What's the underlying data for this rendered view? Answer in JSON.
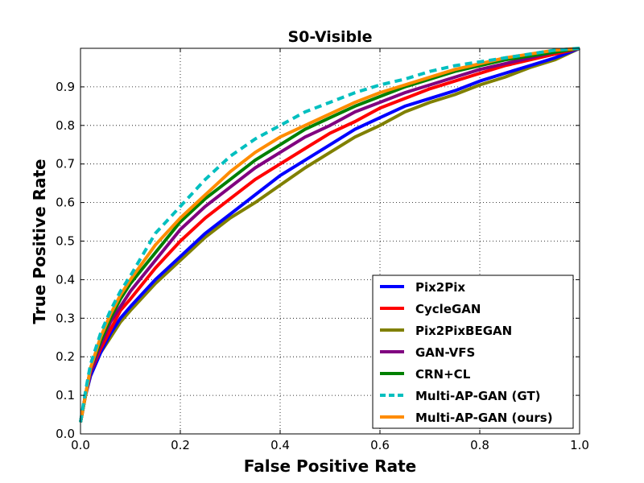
{
  "chart_data": {
    "type": "line",
    "title": "S0-Visible",
    "xlabel": "False Positive Rate",
    "ylabel": "True Positive Rate",
    "xlim": [
      0.0,
      1.0
    ],
    "ylim": [
      0.0,
      1.0
    ],
    "grid": true,
    "legend_position": "lower-right",
    "x_ticks": [
      "0.0",
      "0.2",
      "0.4",
      "0.6",
      "0.8",
      "1.0"
    ],
    "y_ticks": [
      "0.0",
      "0.1",
      "0.2",
      "0.3",
      "0.4",
      "0.5",
      "0.6",
      "0.7",
      "0.8",
      "0.9"
    ],
    "series": [
      {
        "name": "Pix2Pix",
        "color": "#0000ff",
        "style": "solid",
        "points": [
          [
            0,
            0.03
          ],
          [
            0.01,
            0.1
          ],
          [
            0.02,
            0.15
          ],
          [
            0.04,
            0.21
          ],
          [
            0.06,
            0.26
          ],
          [
            0.08,
            0.3
          ],
          [
            0.1,
            0.33
          ],
          [
            0.15,
            0.4
          ],
          [
            0.2,
            0.46
          ],
          [
            0.25,
            0.52
          ],
          [
            0.3,
            0.57
          ],
          [
            0.35,
            0.62
          ],
          [
            0.4,
            0.67
          ],
          [
            0.45,
            0.71
          ],
          [
            0.5,
            0.75
          ],
          [
            0.55,
            0.79
          ],
          [
            0.6,
            0.82
          ],
          [
            0.65,
            0.85
          ],
          [
            0.7,
            0.87
          ],
          [
            0.75,
            0.89
          ],
          [
            0.8,
            0.915
          ],
          [
            0.85,
            0.935
          ],
          [
            0.9,
            0.955
          ],
          [
            0.95,
            0.975
          ],
          [
            1.0,
            1.0
          ]
        ]
      },
      {
        "name": "CycleGAN",
        "color": "#ff0000",
        "style": "solid",
        "points": [
          [
            0,
            0.03
          ],
          [
            0.01,
            0.1
          ],
          [
            0.02,
            0.16
          ],
          [
            0.04,
            0.22
          ],
          [
            0.06,
            0.27
          ],
          [
            0.08,
            0.32
          ],
          [
            0.1,
            0.35
          ],
          [
            0.15,
            0.43
          ],
          [
            0.2,
            0.5
          ],
          [
            0.25,
            0.56
          ],
          [
            0.3,
            0.61
          ],
          [
            0.35,
            0.66
          ],
          [
            0.4,
            0.7
          ],
          [
            0.45,
            0.74
          ],
          [
            0.5,
            0.78
          ],
          [
            0.55,
            0.81
          ],
          [
            0.6,
            0.845
          ],
          [
            0.65,
            0.87
          ],
          [
            0.7,
            0.895
          ],
          [
            0.75,
            0.915
          ],
          [
            0.8,
            0.935
          ],
          [
            0.85,
            0.955
          ],
          [
            0.9,
            0.97
          ],
          [
            0.95,
            0.985
          ],
          [
            1.0,
            1.0
          ]
        ]
      },
      {
        "name": "Pix2PixBEGAN",
        "color": "#808000",
        "style": "solid",
        "points": [
          [
            0,
            0.03
          ],
          [
            0.01,
            0.1
          ],
          [
            0.02,
            0.15
          ],
          [
            0.04,
            0.21
          ],
          [
            0.06,
            0.25
          ],
          [
            0.08,
            0.29
          ],
          [
            0.1,
            0.32
          ],
          [
            0.15,
            0.39
          ],
          [
            0.2,
            0.45
          ],
          [
            0.25,
            0.51
          ],
          [
            0.3,
            0.56
          ],
          [
            0.35,
            0.6
          ],
          [
            0.4,
            0.645
          ],
          [
            0.45,
            0.69
          ],
          [
            0.5,
            0.73
          ],
          [
            0.55,
            0.77
          ],
          [
            0.6,
            0.8
          ],
          [
            0.65,
            0.835
          ],
          [
            0.7,
            0.86
          ],
          [
            0.75,
            0.88
          ],
          [
            0.8,
            0.905
          ],
          [
            0.85,
            0.925
          ],
          [
            0.9,
            0.95
          ],
          [
            0.95,
            0.97
          ],
          [
            1.0,
            1.0
          ]
        ]
      },
      {
        "name": "GAN-VFS",
        "color": "#800080",
        "style": "solid",
        "points": [
          [
            0,
            0.03
          ],
          [
            0.01,
            0.1
          ],
          [
            0.02,
            0.16
          ],
          [
            0.04,
            0.23
          ],
          [
            0.06,
            0.29
          ],
          [
            0.08,
            0.33
          ],
          [
            0.1,
            0.37
          ],
          [
            0.15,
            0.45
          ],
          [
            0.2,
            0.53
          ],
          [
            0.25,
            0.59
          ],
          [
            0.3,
            0.64
          ],
          [
            0.35,
            0.69
          ],
          [
            0.4,
            0.73
          ],
          [
            0.45,
            0.77
          ],
          [
            0.5,
            0.8
          ],
          [
            0.55,
            0.835
          ],
          [
            0.6,
            0.86
          ],
          [
            0.65,
            0.885
          ],
          [
            0.7,
            0.905
          ],
          [
            0.75,
            0.925
          ],
          [
            0.8,
            0.945
          ],
          [
            0.85,
            0.96
          ],
          [
            0.9,
            0.975
          ],
          [
            0.95,
            0.99
          ],
          [
            1.0,
            1.0
          ]
        ]
      },
      {
        "name": "CRN+CL",
        "color": "#008000",
        "style": "solid",
        "points": [
          [
            0,
            0.03
          ],
          [
            0.01,
            0.1
          ],
          [
            0.02,
            0.17
          ],
          [
            0.04,
            0.24
          ],
          [
            0.06,
            0.3
          ],
          [
            0.08,
            0.35
          ],
          [
            0.1,
            0.39
          ],
          [
            0.15,
            0.47
          ],
          [
            0.2,
            0.55
          ],
          [
            0.25,
            0.61
          ],
          [
            0.3,
            0.66
          ],
          [
            0.35,
            0.71
          ],
          [
            0.4,
            0.75
          ],
          [
            0.45,
            0.79
          ],
          [
            0.5,
            0.82
          ],
          [
            0.55,
            0.85
          ],
          [
            0.6,
            0.875
          ],
          [
            0.65,
            0.9
          ],
          [
            0.7,
            0.92
          ],
          [
            0.75,
            0.94
          ],
          [
            0.8,
            0.955
          ],
          [
            0.85,
            0.97
          ],
          [
            0.9,
            0.98
          ],
          [
            0.95,
            0.99
          ],
          [
            1.0,
            1.0
          ]
        ]
      },
      {
        "name": "Multi-AP-GAN (GT)",
        "color": "#00bfbf",
        "style": "dashed",
        "points": [
          [
            0,
            0.03
          ],
          [
            0.01,
            0.11
          ],
          [
            0.02,
            0.18
          ],
          [
            0.04,
            0.26
          ],
          [
            0.06,
            0.32
          ],
          [
            0.08,
            0.37
          ],
          [
            0.1,
            0.41
          ],
          [
            0.15,
            0.52
          ],
          [
            0.2,
            0.59
          ],
          [
            0.25,
            0.66
          ],
          [
            0.3,
            0.72
          ],
          [
            0.35,
            0.765
          ],
          [
            0.4,
            0.8
          ],
          [
            0.45,
            0.835
          ],
          [
            0.5,
            0.86
          ],
          [
            0.55,
            0.885
          ],
          [
            0.6,
            0.905
          ],
          [
            0.65,
            0.92
          ],
          [
            0.7,
            0.94
          ],
          [
            0.75,
            0.955
          ],
          [
            0.8,
            0.965
          ],
          [
            0.85,
            0.975
          ],
          [
            0.9,
            0.985
          ],
          [
            0.95,
            0.995
          ],
          [
            1.0,
            1.0
          ]
        ]
      },
      {
        "name": "Multi-AP-GAN (ours)",
        "color": "#ff8c00",
        "style": "solid",
        "points": [
          [
            0,
            0.03
          ],
          [
            0.01,
            0.1
          ],
          [
            0.02,
            0.17
          ],
          [
            0.04,
            0.25
          ],
          [
            0.06,
            0.31
          ],
          [
            0.08,
            0.36
          ],
          [
            0.1,
            0.4
          ],
          [
            0.15,
            0.49
          ],
          [
            0.2,
            0.56
          ],
          [
            0.25,
            0.62
          ],
          [
            0.3,
            0.68
          ],
          [
            0.35,
            0.73
          ],
          [
            0.4,
            0.77
          ],
          [
            0.45,
            0.8
          ],
          [
            0.5,
            0.83
          ],
          [
            0.55,
            0.86
          ],
          [
            0.6,
            0.885
          ],
          [
            0.65,
            0.905
          ],
          [
            0.7,
            0.925
          ],
          [
            0.75,
            0.945
          ],
          [
            0.8,
            0.96
          ],
          [
            0.85,
            0.975
          ],
          [
            0.9,
            0.985
          ],
          [
            0.95,
            0.995
          ],
          [
            1.0,
            1.0
          ]
        ]
      }
    ]
  }
}
